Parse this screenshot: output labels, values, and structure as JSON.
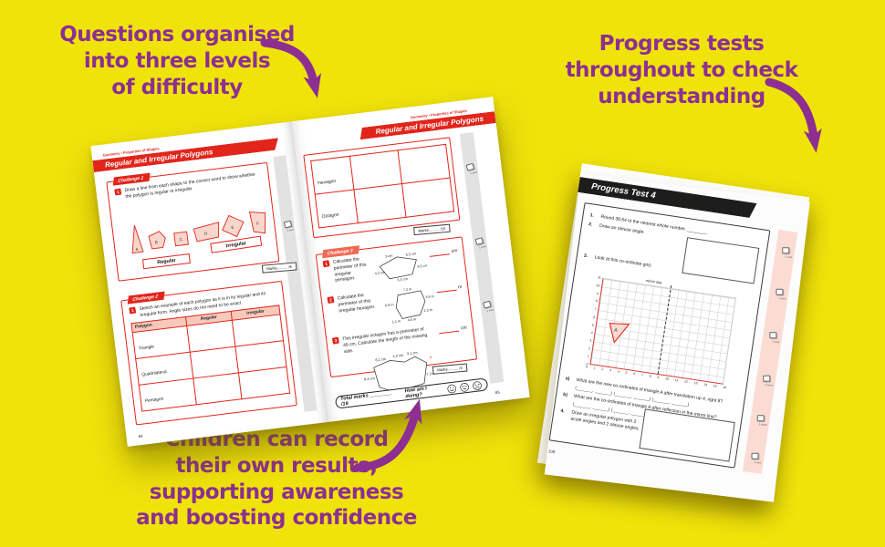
{
  "annotations": {
    "top_left": [
      "Questions organised",
      "into three levels",
      "of difficulty"
    ],
    "top_right": [
      "Progress tests",
      "throughout to check",
      "understanding"
    ],
    "bottom": [
      "Children can record",
      "their own results,",
      "supporting awareness",
      "and boosting confidence"
    ]
  },
  "workbook": {
    "left_page": {
      "breadcrumb": "Geometry • Properties of Shapes",
      "title": "Regular and Irregular Polygons",
      "challenge1": {
        "tab": "Challenge 1",
        "q_num": "1",
        "q_text": "Draw a line from each shape to the correct word to show whether the polygon is regular or irregular.",
        "shape_letters": [
          "A",
          "B",
          "C",
          "D",
          "E",
          "F"
        ],
        "regular_label": "Regular",
        "irregular_label": "Irregular",
        "marks": "Marks.......... /6"
      },
      "challenge2": {
        "tab": "Challenge 2",
        "q_num": "1",
        "q_text": "Sketch an example of each polygon as it is in its regular and its irregular form. Angle sizes do not need to be exact.",
        "table_headers": [
          "Polygon",
          "Regular",
          "Irregular"
        ],
        "table_rows": [
          "Triangle",
          "Quadrilateral",
          "Pentagon"
        ]
      },
      "mark_cube_label": "1 mark",
      "page_number": "84"
    },
    "right_page": {
      "breadcrumb": "Geometry • Properties of Shapes",
      "title": "Regular and Irregular Polygons",
      "polygon_rows": [
        "Hexagon",
        "Octagon"
      ],
      "marks_top": "Marks.......... /10",
      "challenge3": {
        "tab": "Challenge 3",
        "q1": {
          "num": "1",
          "text": "Calculate the perimeter of this irregular pentagon.",
          "unit": "cm",
          "sides": [
            "3 cm",
            "5.5 cm",
            "3.5 cm",
            "3.4 cm",
            "4.2 cm"
          ]
        },
        "q2": {
          "num": "2",
          "text": "Calculate the perimeter of this irregular hexagon.",
          "unit": "m",
          "sides": [
            "7.2 m",
            "3.9 m",
            "2.3 m",
            "4.5 m",
            "1.1 m",
            "6.8 m"
          ]
        },
        "q3": {
          "num": "3",
          "text": "This irregular octagon has a perimeter of 49 cm. Calculate the length of the missing side.",
          "unit": "cm",
          "sides": [
            "6.1 cm",
            "4.2 cm",
            "3.1 cm",
            "?",
            "7.3 cm",
            "8.1 cm",
            "6.3 cm",
            "8.4 cm"
          ]
        },
        "marks": "Marks.......... /3"
      },
      "total_marks": "Total marks ________ /19",
      "how_am_i_doing": "How am I doing?",
      "mark_cube_labels": [
        "1 mark",
        "1 mark",
        "1 mark"
      ],
      "page_number": "85"
    }
  },
  "progress_test": {
    "title": "Progress Test 4",
    "q1_num": "1.",
    "q1_text": "Round 36.64 to the nearest whole number. ________",
    "q2_num": "2.",
    "q2_text": "Draw an obtuse angle.",
    "q3_num": "3.",
    "q3_text": "Look at this co-ordinate grid.",
    "grid": {
      "mirror_line_label": "mirror line",
      "triangle_label": "A",
      "y_ticks": [
        "11",
        "10",
        "9",
        "8",
        "7",
        "6",
        "5",
        "4",
        "3",
        "2",
        "1",
        "0"
      ],
      "x_ticks": [
        "0",
        "1",
        "2",
        "3",
        "4",
        "5",
        "6",
        "7",
        "8",
        "9",
        "10",
        "11",
        "12",
        "13",
        "14",
        "15",
        "16"
      ]
    },
    "qa_label": "a)",
    "qa_text": "What are the new co-ordinates of triangle A after translation up 4, right 8?",
    "qa_blanks": "(______, ______)  (______, ______)  (______, ______)",
    "qb_label": "b)",
    "qb_text": "What are the co-ordinates of triangle A after reflection in the mirror line?",
    "qb_blanks": "(______, ______)  (______, ______)  (______, ______)",
    "q4_num": "4.",
    "q4_text": "Draw an irregular polygon with 2 acute angles and 2 obtuse angles.",
    "mark_cube_labels": [
      "1 mark",
      "1 mark",
      "1 mark",
      "2 marks",
      "2 marks",
      "1 mark"
    ],
    "page_number": "108"
  }
}
